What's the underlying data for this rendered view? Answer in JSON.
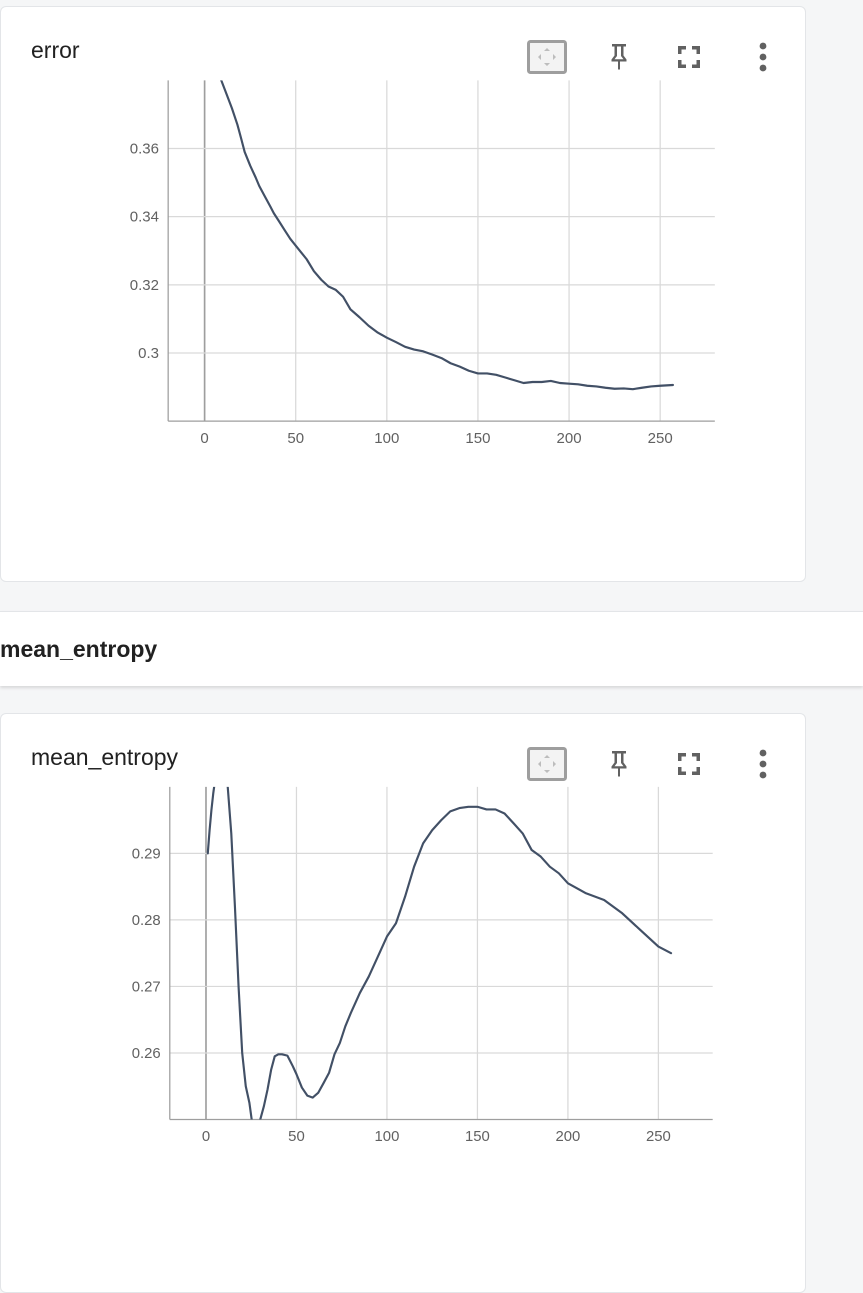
{
  "section": {
    "title": "mean_entropy"
  },
  "cards": [
    {
      "title": "error",
      "chart_data": {
        "type": "line",
        "title": "error",
        "xlabel": "",
        "ylabel": "",
        "xlim": [
          -20,
          280
        ],
        "ylim": [
          0.28,
          0.38
        ],
        "xticks": [
          0,
          50,
          100,
          150,
          200,
          250
        ],
        "yticks": [
          0.3,
          0.32,
          0.34,
          0.36
        ],
        "ytick_labels": [
          "0.3",
          "0.32",
          "0.34",
          "0.36"
        ],
        "grid": true,
        "series": [
          {
            "color": "#425066",
            "x": [
              9,
              12,
              15,
              18,
              20,
              22,
              25,
              28,
              30,
              33,
              36,
              38,
              41,
              44,
              47,
              50,
              53,
              56,
              60,
              64,
              68,
              72,
              76,
              80,
              85,
              90,
              95,
              100,
              105,
              110,
              115,
              120,
              125,
              130,
              135,
              140,
              145,
              150,
              155,
              160,
              165,
              170,
              175,
              180,
              185,
              190,
              195,
              200,
              205,
              210,
              215,
              220,
              225,
              230,
              235,
              240,
              245,
              250,
              257
            ],
            "y": [
              0.3802,
              0.376,
              0.3718,
              0.367,
              0.363,
              0.359,
              0.355,
              0.3515,
              0.349,
              0.346,
              0.343,
              0.341,
              0.3385,
              0.336,
              0.3335,
              0.3315,
              0.3295,
              0.3275,
              0.324,
              0.3215,
              0.3195,
              0.3185,
              0.3165,
              0.3128,
              0.3105,
              0.308,
              0.306,
              0.3045,
              0.3032,
              0.3018,
              0.301,
              0.3005,
              0.2995,
              0.2985,
              0.297,
              0.296,
              0.2948,
              0.294,
              0.294,
              0.2936,
              0.2928,
              0.292,
              0.2912,
              0.2915,
              0.2915,
              0.2918,
              0.2912,
              0.291,
              0.2908,
              0.2904,
              0.2902,
              0.2898,
              0.2895,
              0.2896,
              0.2894,
              0.2898,
              0.2902,
              0.2904,
              0.2906
            ]
          }
        ]
      }
    },
    {
      "title": "mean_entropy",
      "chart_data": {
        "type": "line",
        "title": "mean_entropy",
        "xlabel": "",
        "ylabel": "",
        "xlim": [
          -20,
          280
        ],
        "ylim": [
          0.25,
          0.3
        ],
        "xticks": [
          0,
          50,
          100,
          150,
          200,
          250
        ],
        "yticks": [
          0.26,
          0.27,
          0.28,
          0.29
        ],
        "ytick_labels": [
          "0.26",
          "0.27",
          "0.28",
          "0.29"
        ],
        "grid": true,
        "series": [
          {
            "color": "#425066",
            "x": [
              1,
              2,
              3,
              4,
              5,
              6,
              8,
              10,
              12,
              14,
              16,
              18,
              20,
              22,
              24,
              26,
              28,
              30,
              32,
              34,
              36,
              38,
              40,
              42,
              45,
              48,
              50,
              53,
              56,
              59,
              62,
              65,
              68,
              71,
              74,
              77,
              80,
              85,
              90,
              95,
              100,
              105,
              110,
              115,
              120,
              125,
              130,
              135,
              140,
              145,
              150,
              155,
              160,
              165,
              170,
              175,
              180,
              185,
              190,
              195,
              200,
              210,
              220,
              230,
              240,
              250,
              257
            ],
            "y": [
              0.29,
              0.2935,
              0.2965,
              0.299,
              0.301,
              0.3025,
              0.3035,
              0.3035,
              0.3,
              0.293,
              0.282,
              0.27,
              0.26,
              0.255,
              0.2525,
              0.2485,
              0.248,
              0.25,
              0.252,
              0.2545,
              0.2575,
              0.2595,
              0.2598,
              0.2598,
              0.2596,
              0.258,
              0.2568,
              0.2548,
              0.2536,
              0.2533,
              0.254,
              0.2555,
              0.257,
              0.2598,
              0.2615,
              0.264,
              0.266,
              0.269,
              0.2715,
              0.2745,
              0.2775,
              0.2795,
              0.2835,
              0.288,
              0.2915,
              0.2935,
              0.295,
              0.2963,
              0.2968,
              0.297,
              0.297,
              0.2966,
              0.2966,
              0.296,
              0.2945,
              0.293,
              0.2905,
              0.2895,
              0.288,
              0.287,
              0.2855,
              0.284,
              0.283,
              0.281,
              0.2785,
              0.276,
              0.275
            ]
          }
        ]
      }
    }
  ],
  "icons": [
    "fit-to-data-icon",
    "pin-icon",
    "fullscreen-icon",
    "more-vert-icon"
  ],
  "colors": {
    "line": "#425066",
    "grid": "#d9d9d9",
    "axis": "#9e9e9e",
    "icon": "#616161"
  }
}
